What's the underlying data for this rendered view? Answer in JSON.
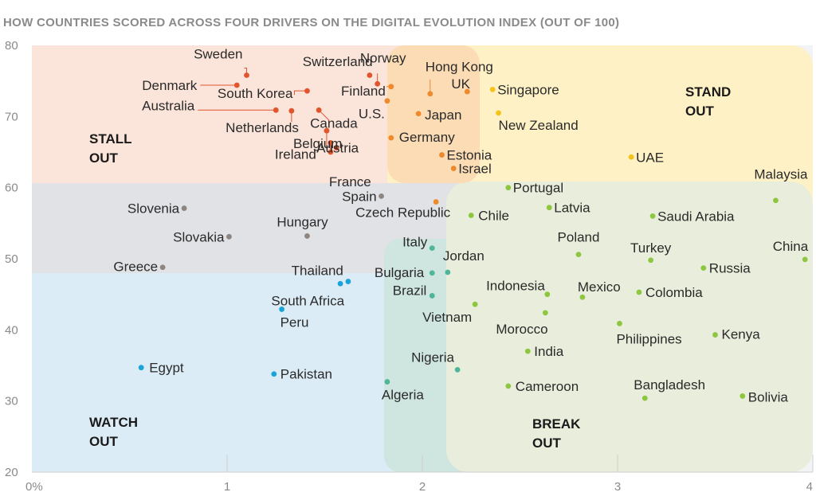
{
  "chart_data": {
    "type": "scatter",
    "title": "HOW COUNTRIES SCORED ACROSS FOUR DRIVERS ON THE DIGITAL EVOLUTION INDEX (OUT OF 100)",
    "xlim": [
      0,
      4
    ],
    "ylim": [
      20,
      80
    ],
    "x_ticks": [
      "0%",
      "1",
      "2",
      "3",
      "4"
    ],
    "y_ticks": [
      "20",
      "30",
      "40",
      "50",
      "60",
      "70",
      "80"
    ],
    "grid": false,
    "colors": {
      "stall": "#e2542c",
      "stand": "#f5c21a",
      "break": "#8dc63f",
      "watch": "#1aa3d9",
      "transition_stall": "#ee8a2c",
      "transition_break": "#4fb59a",
      "neutral": "#8d8580"
    },
    "quadrants": [
      {
        "name": "stall",
        "lines": [
          "STALL",
          "OUT"
        ]
      },
      {
        "name": "stand",
        "lines": [
          "STAND",
          "OUT"
        ]
      },
      {
        "name": "watch",
        "lines": [
          "WATCH",
          "OUT"
        ]
      },
      {
        "name": "break",
        "lines": [
          "BREAK",
          "OUT"
        ]
      }
    ],
    "points": [
      {
        "name": "Sweden",
        "x": 1.1,
        "y": 75.8,
        "group": "stall"
      },
      {
        "name": "Denmark",
        "x": 1.05,
        "y": 74.4,
        "group": "stall"
      },
      {
        "name": "Switzerland",
        "x": 1.77,
        "y": 74.6,
        "group": "stall"
      },
      {
        "name": "Norway",
        "x": 1.73,
        "y": 75.8,
        "group": "stall"
      },
      {
        "name": "South Korea",
        "x": 1.41,
        "y": 73.6,
        "group": "stall"
      },
      {
        "name": "Australia",
        "x": 1.25,
        "y": 70.9,
        "group": "stall"
      },
      {
        "name": "Netherlands",
        "x": 1.33,
        "y": 70.8,
        "group": "stall"
      },
      {
        "name": "Canada",
        "x": 1.47,
        "y": 70.9,
        "group": "stall"
      },
      {
        "name": "Ireland",
        "x": 1.53,
        "y": 66.3,
        "group": "stall"
      },
      {
        "name": "Austria",
        "x": 1.56,
        "y": 65.6,
        "group": "stall"
      },
      {
        "name": "Belgium",
        "x": 1.51,
        "y": 68.0,
        "group": "stall"
      },
      {
        "name": "France",
        "x": 1.53,
        "y": 65.0,
        "group": "stall"
      },
      {
        "name": "Hong Kong",
        "x": 2.04,
        "y": 73.2,
        "group": "transition_stall"
      },
      {
        "name": "UK",
        "x": 2.23,
        "y": 73.5,
        "group": "transition_stall"
      },
      {
        "name": "Finland",
        "x": 1.84,
        "y": 74.2,
        "group": "transition_stall"
      },
      {
        "name": "U.S.",
        "x": 1.82,
        "y": 72.2,
        "group": "transition_stall"
      },
      {
        "name": "Japan",
        "x": 1.98,
        "y": 70.4,
        "group": "transition_stall"
      },
      {
        "name": "Germany",
        "x": 1.84,
        "y": 67.0,
        "group": "transition_stall"
      },
      {
        "name": "Estonia",
        "x": 2.1,
        "y": 64.6,
        "group": "transition_stall"
      },
      {
        "name": "Israel",
        "x": 2.16,
        "y": 62.7,
        "group": "transition_stall"
      },
      {
        "name": "Singapore",
        "x": 2.36,
        "y": 73.8,
        "group": "stand"
      },
      {
        "name": "New Zealand",
        "x": 2.39,
        "y": 70.5,
        "group": "stand"
      },
      {
        "name": "UAE",
        "x": 3.07,
        "y": 64.3,
        "group": "stand"
      },
      {
        "name": "Spain",
        "x": 1.79,
        "y": 58.8,
        "group": "neutral"
      },
      {
        "name": "Czech Republic",
        "x": 2.07,
        "y": 58.0,
        "group": "transition_stall"
      },
      {
        "name": "Slovenia",
        "x": 0.78,
        "y": 57.1,
        "group": "neutral"
      },
      {
        "name": "Slovakia",
        "x": 1.01,
        "y": 53.1,
        "group": "neutral"
      },
      {
        "name": "Hungary",
        "x": 1.41,
        "y": 53.2,
        "group": "neutral"
      },
      {
        "name": "Greece",
        "x": 0.67,
        "y": 48.8,
        "group": "neutral"
      },
      {
        "name": "Portugal",
        "x": 2.44,
        "y": 60.0,
        "group": "break"
      },
      {
        "name": "Latvia",
        "x": 2.65,
        "y": 57.2,
        "group": "break"
      },
      {
        "name": "Chile",
        "x": 2.25,
        "y": 56.1,
        "group": "break"
      },
      {
        "name": "Malaysia",
        "x": 3.81,
        "y": 58.2,
        "group": "break"
      },
      {
        "name": "Saudi Arabia",
        "x": 3.18,
        "y": 56.0,
        "group": "break"
      },
      {
        "name": "Poland",
        "x": 2.8,
        "y": 50.6,
        "group": "break"
      },
      {
        "name": "Turkey",
        "x": 3.17,
        "y": 49.8,
        "group": "break"
      },
      {
        "name": "China",
        "x": 3.96,
        "y": 49.9,
        "group": "break"
      },
      {
        "name": "Russia",
        "x": 3.44,
        "y": 48.7,
        "group": "break"
      },
      {
        "name": "Italy",
        "x": 2.05,
        "y": 51.5,
        "group": "transition_break"
      },
      {
        "name": "Jordan",
        "x": 2.13,
        "y": 48.1,
        "group": "transition_break"
      },
      {
        "name": "Bulgaria",
        "x": 2.05,
        "y": 48.0,
        "group": "transition_break"
      },
      {
        "name": "Brazil",
        "x": 2.05,
        "y": 44.8,
        "group": "transition_break"
      },
      {
        "name": "Vietnam",
        "x": 2.27,
        "y": 43.6,
        "group": "break"
      },
      {
        "name": "Indonesia",
        "x": 2.64,
        "y": 45.0,
        "group": "break"
      },
      {
        "name": "Mexico",
        "x": 2.82,
        "y": 44.6,
        "group": "break"
      },
      {
        "name": "Colombia",
        "x": 3.11,
        "y": 45.3,
        "group": "break"
      },
      {
        "name": "Morocco",
        "x": 2.63,
        "y": 42.4,
        "group": "break"
      },
      {
        "name": "Philippines",
        "x": 3.01,
        "y": 40.9,
        "group": "break"
      },
      {
        "name": "Kenya",
        "x": 3.5,
        "y": 39.3,
        "group": "break"
      },
      {
        "name": "India",
        "x": 2.54,
        "y": 37.0,
        "group": "break"
      },
      {
        "name": "Nigeria",
        "x": 2.18,
        "y": 34.4,
        "group": "transition_break"
      },
      {
        "name": "Algeria",
        "x": 1.82,
        "y": 32.7,
        "group": "transition_break"
      },
      {
        "name": "Cameroon",
        "x": 2.44,
        "y": 32.1,
        "group": "break"
      },
      {
        "name": "Bangladesh",
        "x": 3.14,
        "y": 30.4,
        "group": "break"
      },
      {
        "name": "Bolivia",
        "x": 3.64,
        "y": 30.7,
        "group": "break"
      },
      {
        "name": "Thailand",
        "x": 1.62,
        "y": 46.8,
        "group": "watch"
      },
      {
        "name": "South Africa",
        "x": 1.58,
        "y": 46.5,
        "group": "watch"
      },
      {
        "name": "Peru",
        "x": 1.28,
        "y": 42.9,
        "group": "watch"
      },
      {
        "name": "Egypt",
        "x": 0.56,
        "y": 34.7,
        "group": "watch"
      },
      {
        "name": "Pakistan",
        "x": 1.24,
        "y": 33.8,
        "group": "watch"
      }
    ]
  }
}
